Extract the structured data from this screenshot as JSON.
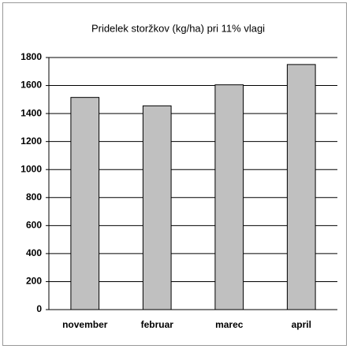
{
  "chart_data": {
    "type": "bar",
    "title": "Pridelek storžkov (kg/ha) pri 11% vlagi",
    "categories": [
      "november",
      "februar",
      "marec",
      "april"
    ],
    "values": [
      1515,
      1455,
      1605,
      1750
    ],
    "color": "#c0c0c0",
    "ylim": [
      0,
      1800
    ],
    "yticks": [
      0,
      200,
      400,
      600,
      800,
      1000,
      1200,
      1400,
      1600,
      1800
    ],
    "grid": true
  }
}
